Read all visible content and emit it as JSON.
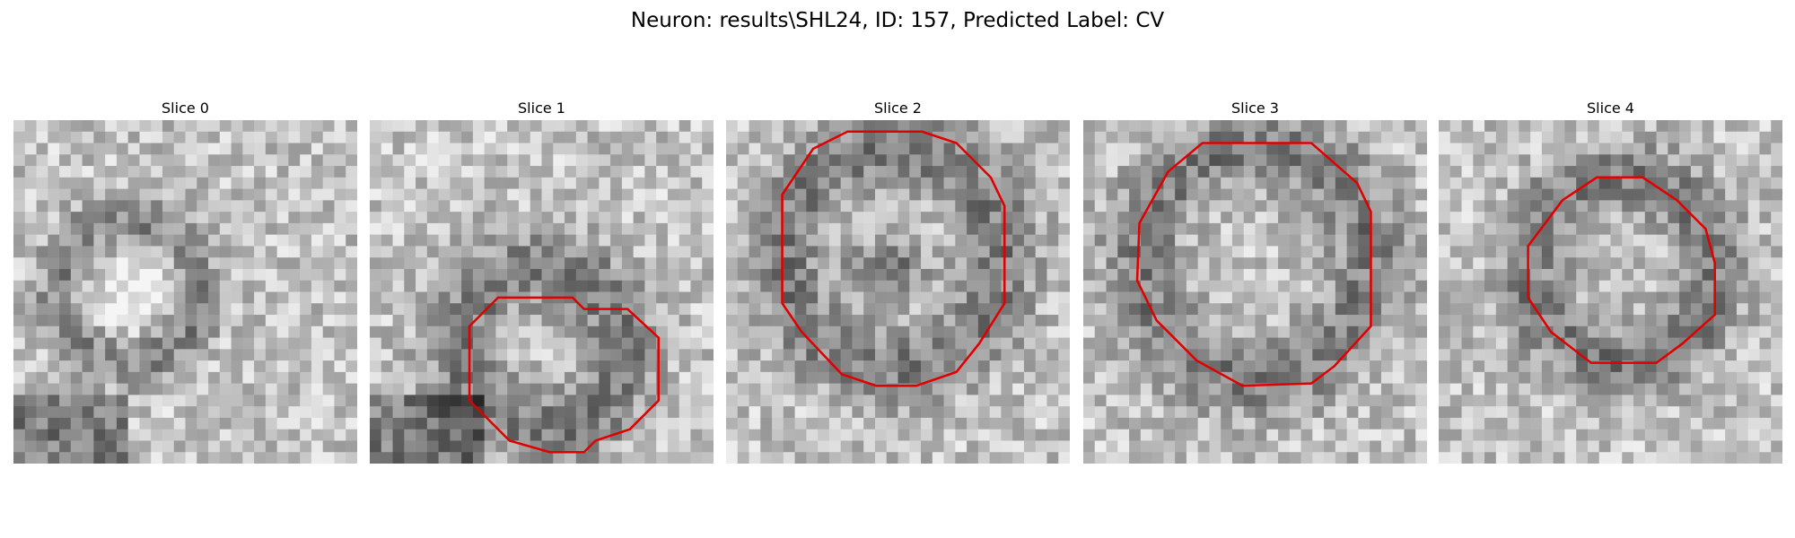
{
  "figure": {
    "title": "Neuron: results\\SHL24, ID: 157, Predicted Label: CV",
    "panels": [
      {
        "title": "Slice 0"
      },
      {
        "title": "Slice 1"
      },
      {
        "title": "Slice 2"
      },
      {
        "title": "Slice 3"
      },
      {
        "title": "Slice 4"
      }
    ]
  }
}
